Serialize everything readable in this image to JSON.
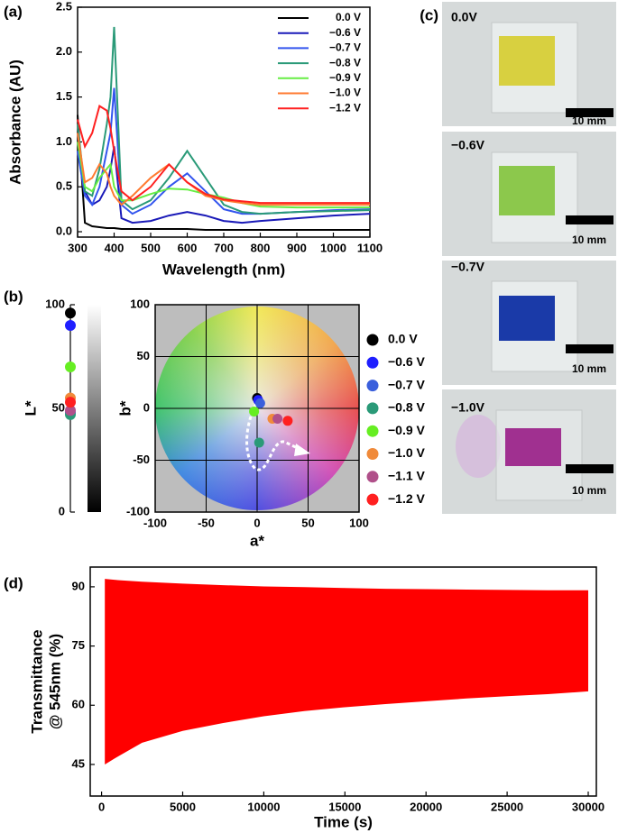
{
  "chart_data": [
    {
      "type": "line",
      "label": "(a)",
      "xlabel": "Wavelength (nm)",
      "ylabel": "Absorbance (AU)",
      "x": [
        300,
        320,
        340,
        360,
        380,
        390,
        400,
        420,
        450,
        500,
        550,
        600,
        650,
        700,
        750,
        800,
        900,
        1000,
        1100
      ],
      "xlim": [
        300,
        1100
      ],
      "xticks": [
        300,
        400,
        500,
        600,
        700,
        800,
        900,
        1000,
        1100
      ],
      "ylim": [
        -0.06,
        2.5
      ],
      "yticks": [
        {
          "value": 0,
          "label": "0.0"
        },
        0.5,
        {
          "value": 1,
          "label": "1.0"
        },
        1.5,
        {
          "value": 2,
          "label": "2.0"
        },
        2.5
      ],
      "series": [
        {
          "name": "0.0 V",
          "color": "#000000",
          "values": [
            1.3,
            0.1,
            0.06,
            0.05,
            0.04,
            0.04,
            0.04,
            0.03,
            0.03,
            0.03,
            0.03,
            0.03,
            0.02,
            0.02,
            0.02,
            0.02,
            0.02,
            0.02,
            0.02
          ]
        },
        {
          "name": "−0.6 V",
          "color": "#1a1ab8",
          "values": [
            0.9,
            0.45,
            0.3,
            0.35,
            0.5,
            0.7,
            0.95,
            0.15,
            0.1,
            0.12,
            0.18,
            0.22,
            0.18,
            0.12,
            0.1,
            0.12,
            0.15,
            0.18,
            0.2
          ]
        },
        {
          "name": "−0.7 V",
          "color": "#3355ee",
          "values": [
            0.9,
            0.4,
            0.3,
            0.5,
            0.9,
            1.1,
            1.6,
            0.3,
            0.2,
            0.3,
            0.5,
            0.65,
            0.45,
            0.25,
            0.2,
            0.2,
            0.22,
            0.24,
            0.25
          ]
        },
        {
          "name": "−0.8 V",
          "color": "#2a9a78",
          "values": [
            1.2,
            0.45,
            0.4,
            0.7,
            1.2,
            1.5,
            2.28,
            0.35,
            0.25,
            0.35,
            0.6,
            0.9,
            0.6,
            0.3,
            0.22,
            0.2,
            0.22,
            0.23,
            0.24
          ]
        },
        {
          "name": "−0.9 V",
          "color": "#66ee44",
          "values": [
            1.0,
            0.5,
            0.45,
            0.6,
            0.7,
            0.75,
            0.5,
            0.35,
            0.35,
            0.42,
            0.48,
            0.47,
            0.42,
            0.38,
            0.32,
            0.28,
            0.27,
            0.27,
            0.27
          ]
        },
        {
          "name": "−1.0 V",
          "color": "#ff7a30",
          "values": [
            1.1,
            0.55,
            0.6,
            0.75,
            0.65,
            0.5,
            0.4,
            0.3,
            0.4,
            0.6,
            0.75,
            0.55,
            0.4,
            0.35,
            0.32,
            0.3,
            0.3,
            0.3,
            0.3
          ]
        },
        {
          "name": "−1.2 V",
          "color": "#ff2020",
          "values": [
            1.25,
            0.95,
            1.1,
            1.4,
            1.35,
            1.15,
            0.9,
            0.45,
            0.35,
            0.5,
            0.75,
            0.55,
            0.42,
            0.36,
            0.34,
            0.32,
            0.32,
            0.32,
            0.32
          ]
        }
      ]
    },
    {
      "type": "strip",
      "label": "(b)",
      "ylabel": "L*",
      "ylim": [
        0,
        100
      ],
      "yticks": [
        0,
        50,
        100
      ],
      "values": [
        96,
        90,
        48,
        47,
        70,
        55,
        49,
        53
      ],
      "colors": [
        "#000000",
        "#1f1fff",
        "#3a5fdc",
        "#2a9a78",
        "#66ee22",
        "#f08a3a",
        "#b0508a",
        "#ff2020"
      ]
    },
    {
      "type": "scatter",
      "xlabel": "a*",
      "ylabel": "b*",
      "xlim": [
        -100,
        100
      ],
      "xticks": [
        -100,
        -50,
        0,
        50,
        100
      ],
      "ylim": [
        -100,
        100
      ],
      "yticks": [
        -100,
        -50,
        0,
        50,
        100
      ],
      "grid": true,
      "series": [
        {
          "name": "0.0 V",
          "color": "#000000",
          "x": [
            0
          ],
          "values": [
            10
          ]
        },
        {
          "name": "−0.6 V",
          "color": "#1f1fff",
          "x": [
            1
          ],
          "values": [
            8
          ]
        },
        {
          "name": "−0.7 V",
          "color": "#3a5fdc",
          "x": [
            3
          ],
          "values": [
            5
          ]
        },
        {
          "name": "−0.8 V",
          "color": "#2a9a78",
          "x": [
            2
          ],
          "values": [
            -33
          ]
        },
        {
          "name": "−0.9 V",
          "color": "#66ee22",
          "x": [
            -3
          ],
          "values": [
            -3
          ]
        },
        {
          "name": "−1.0 V",
          "color": "#f08a3a",
          "x": [
            15
          ],
          "values": [
            -10
          ]
        },
        {
          "name": "−1.1 V",
          "color": "#b0508a",
          "x": [
            20
          ],
          "values": [
            -10
          ]
        },
        {
          "name": "−1.2 V",
          "color": "#ff2020",
          "x": [
            30
          ],
          "values": [
            -12
          ]
        }
      ]
    },
    {
      "type": "area",
      "label": "(d)",
      "xlabel": "Time (s)",
      "ylabel": [
        "Transmittance",
        "@ 545nm (%)"
      ],
      "color": "#ff0000",
      "x": [
        200,
        1000,
        2500,
        5000,
        7500,
        10000,
        12500,
        15000,
        17500,
        20000,
        22500,
        25000,
        27500,
        30000
      ],
      "upper": [
        92,
        91.7,
        91.3,
        90.8,
        90.4,
        90.1,
        89.9,
        89.7,
        89.5,
        89.4,
        89.3,
        89.2,
        89.1,
        89.1
      ],
      "lower": [
        45,
        47,
        50.5,
        53.5,
        55.5,
        57.2,
        58.5,
        59.5,
        60.3,
        61,
        61.7,
        62.3,
        62.8,
        63.5
      ],
      "xlim": [
        -700,
        30500
      ],
      "xticks": [
        0,
        5000,
        10000,
        15000,
        20000,
        25000,
        30000
      ],
      "ylim": [
        37,
        95
      ],
      "yticks": [
        45,
        60,
        75,
        90
      ]
    }
  ],
  "photos": {
    "label": "(c)",
    "items": [
      {
        "label": "0.0V",
        "scale": "10 mm"
      },
      {
        "label": "−0.6V",
        "scale": "10 mm"
      },
      {
        "label": "−0.7V",
        "scale": "10 mm"
      },
      {
        "label": "−1.0V",
        "scale": "10 mm"
      }
    ]
  }
}
